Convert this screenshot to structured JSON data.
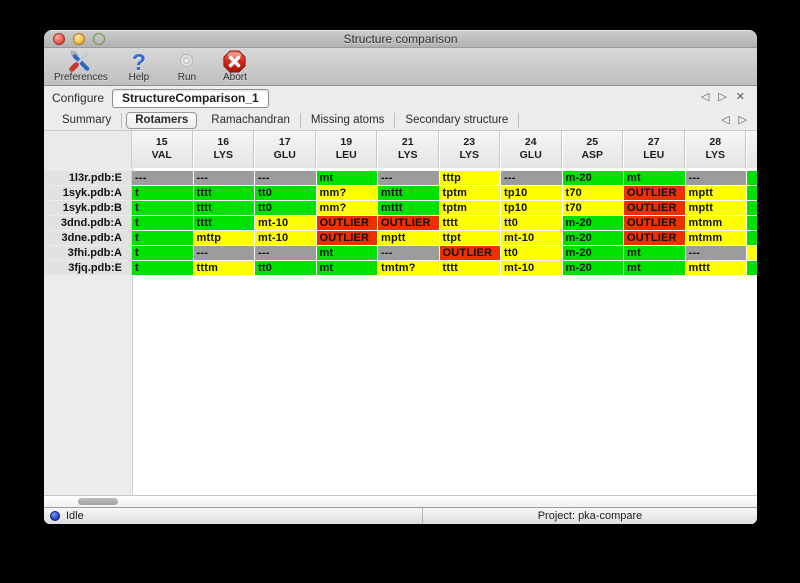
{
  "window": {
    "title": "Structure comparison"
  },
  "toolbar": {
    "buttons": [
      {
        "label": "Preferences",
        "icon": "tools-icon"
      },
      {
        "label": "Help",
        "icon": "question-icon"
      },
      {
        "label": "Run",
        "icon": "gear-icon"
      },
      {
        "label": "Abort",
        "icon": "abort-icon"
      }
    ]
  },
  "configure": {
    "label": "Configure",
    "value": "StructureComparison_1",
    "nav": {
      "prev": "◁",
      "next": "▷",
      "close": "✕"
    }
  },
  "tabs": {
    "items": [
      "Summary",
      "Rotamers",
      "Ramachandran",
      "Missing atoms",
      "Secondary structure"
    ],
    "active": "Rotamers",
    "nav": {
      "prev": "◁",
      "next": "▷"
    }
  },
  "colors": {
    "good": "#00e100",
    "allowed": "#ffff00",
    "outlier": "#ee2f00",
    "na": "#9c9c9c"
  },
  "table": {
    "columns": [
      {
        "num": "15",
        "res": "VAL"
      },
      {
        "num": "16",
        "res": "LYS"
      },
      {
        "num": "17",
        "res": "GLU"
      },
      {
        "num": "19",
        "res": "LEU"
      },
      {
        "num": "21",
        "res": "LYS"
      },
      {
        "num": "23",
        "res": "LYS"
      },
      {
        "num": "24",
        "res": "GLU"
      },
      {
        "num": "25",
        "res": "ASP"
      },
      {
        "num": "27",
        "res": "LEU"
      },
      {
        "num": "28",
        "res": "LYS"
      },
      {
        "num": "",
        "res": ""
      }
    ],
    "rows": [
      {
        "label": "1l3r.pdb:E",
        "cells": [
          [
            "---",
            "na"
          ],
          [
            "---",
            "na"
          ],
          [
            "---",
            "na"
          ],
          [
            "mt",
            "good"
          ],
          [
            "---",
            "na"
          ],
          [
            "tttp",
            "allowed"
          ],
          [
            "---",
            "na"
          ],
          [
            "m-20",
            "good"
          ],
          [
            "mt",
            "good"
          ],
          [
            "---",
            "na"
          ],
          [
            "",
            "good"
          ]
        ]
      },
      {
        "label": "1syk.pdb:A",
        "cells": [
          [
            "t",
            "good"
          ],
          [
            "tttt",
            "good"
          ],
          [
            "tt0",
            "good"
          ],
          [
            "mm?",
            "allowed"
          ],
          [
            "mttt",
            "good"
          ],
          [
            "tptm",
            "allowed"
          ],
          [
            "tp10",
            "allowed"
          ],
          [
            "t70",
            "allowed"
          ],
          [
            "OUTLIER",
            "outlier"
          ],
          [
            "mptt",
            "allowed"
          ],
          [
            "",
            "good"
          ]
        ]
      },
      {
        "label": "1syk.pdb:B",
        "cells": [
          [
            "t",
            "good"
          ],
          [
            "tttt",
            "good"
          ],
          [
            "tt0",
            "good"
          ],
          [
            "mm?",
            "allowed"
          ],
          [
            "mttt",
            "good"
          ],
          [
            "tptm",
            "allowed"
          ],
          [
            "tp10",
            "allowed"
          ],
          [
            "t70",
            "allowed"
          ],
          [
            "OUTLIER",
            "outlier"
          ],
          [
            "mptt",
            "allowed"
          ],
          [
            "",
            "good"
          ]
        ]
      },
      {
        "label": "3dnd.pdb:A",
        "cells": [
          [
            "t",
            "good"
          ],
          [
            "tttt",
            "good"
          ],
          [
            "mt-10",
            "allowed"
          ],
          [
            "OUTLIER",
            "outlier"
          ],
          [
            "OUTLIER",
            "outlier"
          ],
          [
            "tttt",
            "allowed"
          ],
          [
            "tt0",
            "allowed"
          ],
          [
            "m-20",
            "good"
          ],
          [
            "OUTLIER",
            "outlier"
          ],
          [
            "mtmm",
            "allowed"
          ],
          [
            "",
            "good"
          ]
        ]
      },
      {
        "label": "3dne.pdb:A",
        "cells": [
          [
            "t",
            "good"
          ],
          [
            "mttp",
            "allowed"
          ],
          [
            "mt-10",
            "allowed"
          ],
          [
            "OUTLIER",
            "outlier"
          ],
          [
            "mptt",
            "allowed"
          ],
          [
            "ttpt",
            "allowed"
          ],
          [
            "mt-10",
            "allowed"
          ],
          [
            "m-20",
            "good"
          ],
          [
            "OUTLIER",
            "outlier"
          ],
          [
            "mtmm",
            "allowed"
          ],
          [
            "",
            "good"
          ]
        ]
      },
      {
        "label": "3fhi.pdb:A",
        "cells": [
          [
            "t",
            "good"
          ],
          [
            "---",
            "na"
          ],
          [
            "---",
            "na"
          ],
          [
            "mt",
            "good"
          ],
          [
            "---",
            "na"
          ],
          [
            "OUTLIER",
            "outlier"
          ],
          [
            "tt0",
            "allowed"
          ],
          [
            "m-20",
            "good"
          ],
          [
            "mt",
            "good"
          ],
          [
            "---",
            "na"
          ],
          [
            "",
            "allowed"
          ]
        ]
      },
      {
        "label": "3fjq.pdb:E",
        "cells": [
          [
            "t",
            "good"
          ],
          [
            "tttm",
            "allowed"
          ],
          [
            "tt0",
            "good"
          ],
          [
            "mt",
            "good"
          ],
          [
            "tmtm?",
            "allowed"
          ],
          [
            "tttt",
            "allowed"
          ],
          [
            "mt-10",
            "allowed"
          ],
          [
            "m-20",
            "good"
          ],
          [
            "mt",
            "good"
          ],
          [
            "mttt",
            "allowed"
          ],
          [
            "",
            "good"
          ]
        ]
      }
    ]
  },
  "status": {
    "state": "Idle",
    "project": "Project: pka-compare"
  }
}
